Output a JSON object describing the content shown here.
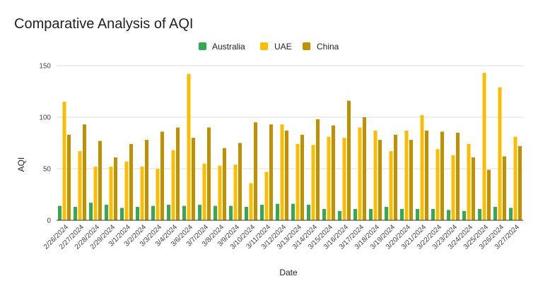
{
  "chart_data": {
    "type": "bar",
    "title": "Comparative Analysis of AQI",
    "xlabel": "Date",
    "ylabel": "AQI",
    "ylim": [
      0,
      150
    ],
    "yticks": [
      "0",
      "50",
      "100",
      "150"
    ],
    "grid": true,
    "legend_position": "top",
    "categories": [
      "2/26/2024",
      "2/27/2024",
      "2/28/2024",
      "2/29/2024",
      "3/1/2024",
      "3/2/2024",
      "3/3/2024",
      "3/4/2024",
      "3/6/2024",
      "3/7/2024",
      "3/8/2024",
      "3/9/2024",
      "3/10/2024",
      "3/11/2024",
      "3/12/2024",
      "3/13/2024",
      "3/14/2024",
      "3/15/2024",
      "3/16/2024",
      "3/17/2024",
      "3/18/2024",
      "3/19/2024",
      "3/20/2024",
      "3/21/2024",
      "3/22/2024",
      "3/23/2024",
      "3/24/2024",
      "3/25/2024",
      "3/26/2024",
      "3/27/2024"
    ],
    "series": [
      {
        "name": "Australia",
        "color": "#34a853",
        "values": [
          14,
          13,
          17,
          15,
          12,
          13,
          14,
          15,
          14,
          15,
          14,
          14,
          13,
          15,
          16,
          16,
          15,
          11,
          9,
          11,
          11,
          13,
          11,
          11,
          11,
          10,
          9,
          11,
          13,
          12
        ]
      },
      {
        "name": "UAE",
        "color": "#fbbc04",
        "values": [
          115,
          67,
          52,
          52,
          57,
          52,
          50,
          68,
          142,
          55,
          53,
          54,
          36,
          47,
          93,
          74,
          73,
          81,
          80,
          90,
          87,
          67,
          87,
          102,
          69,
          63,
          74,
          143,
          129,
          81
        ]
      },
      {
        "name": "China",
        "color": "#bf9000",
        "values": [
          83,
          93,
          77,
          61,
          74,
          78,
          86,
          90,
          80,
          90,
          70,
          75,
          95,
          93,
          87,
          83,
          98,
          92,
          116,
          100,
          78,
          83,
          78,
          87,
          86,
          85,
          61,
          49,
          62,
          72
        ]
      }
    ]
  }
}
